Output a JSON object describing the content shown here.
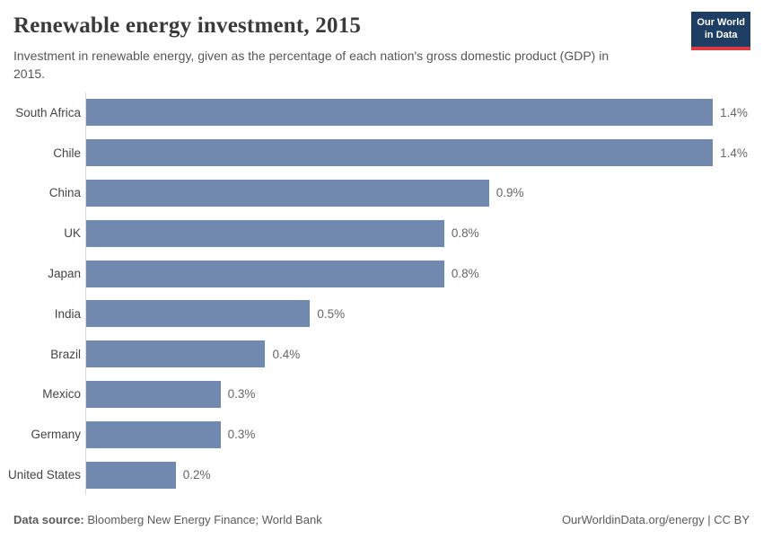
{
  "header": {
    "title": "Renewable energy investment, 2015",
    "subtitle": "Investment in renewable energy, given as the percentage of each nation's gross domestic product (GDP) in 2015.",
    "logo": {
      "line1": "Our World",
      "line2": "in Data"
    }
  },
  "chart_data": {
    "type": "bar",
    "orientation": "horizontal",
    "title": "Renewable energy investment, 2015",
    "xlabel": "",
    "ylabel": "",
    "categories": [
      "South Africa",
      "Chile",
      "China",
      "UK",
      "Japan",
      "India",
      "Brazil",
      "Mexico",
      "Germany",
      "United States"
    ],
    "values": [
      1.4,
      1.4,
      0.9,
      0.8,
      0.8,
      0.5,
      0.4,
      0.3,
      0.3,
      0.2
    ],
    "value_labels": [
      "1.4%",
      "1.4%",
      "0.9%",
      "0.8%",
      "0.8%",
      "0.5%",
      "0.4%",
      "0.3%",
      "0.3%",
      "0.2%"
    ],
    "xlim": [
      0,
      1.48
    ],
    "grid": false,
    "legend": "none",
    "bar_color": "#7189ae"
  },
  "footer": {
    "source_label": "Data source:",
    "source_text": " Bloomberg New Energy Finance; World Bank",
    "credit_text": "OurWorldinData.org/energy | CC BY"
  },
  "colors": {
    "bar": "#7189ae",
    "axis_line": "#dadada",
    "logo_navy": "#1d3d63",
    "logo_red": "#dd3b44",
    "title_text": "#3a3a3a",
    "subtitle_text": "#565656",
    "value_text": "#666666"
  }
}
